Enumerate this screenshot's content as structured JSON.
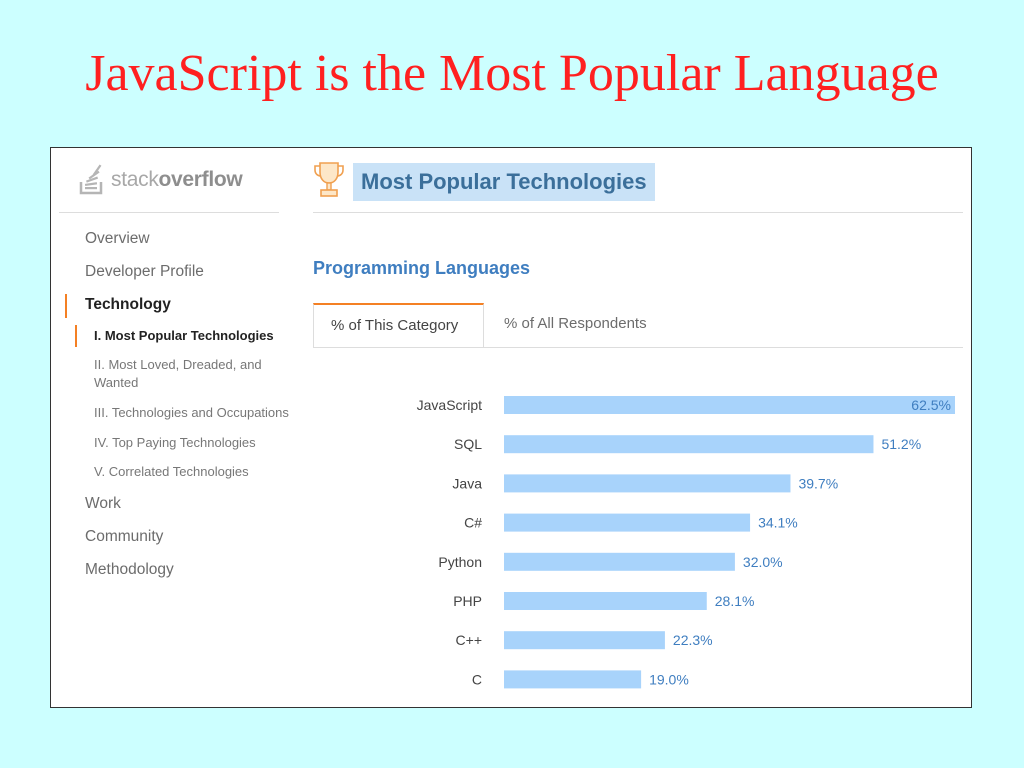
{
  "slide": {
    "title": "JavaScript is the Most Popular Language"
  },
  "sidebar": {
    "logo_light": "stack",
    "logo_bold": "overflow",
    "items": [
      {
        "label": "Overview"
      },
      {
        "label": "Developer Profile"
      },
      {
        "label": "Technology",
        "active": true
      },
      {
        "label": "Work"
      },
      {
        "label": "Community"
      },
      {
        "label": "Methodology"
      }
    ],
    "subitems": [
      {
        "label": "I. Most Popular Technologies",
        "active": true
      },
      {
        "label": "II. Most Loved, Dreaded, and Wanted"
      },
      {
        "label": "III. Technologies and Occupations"
      },
      {
        "label": "IV. Top Paying Technologies"
      },
      {
        "label": "V. Correlated Technologies"
      }
    ]
  },
  "main": {
    "title": "Most Popular Technologies",
    "section": "Programming Languages",
    "tabs": [
      {
        "label": "% of This Category",
        "active": true
      },
      {
        "label": "% of All Respondents"
      }
    ]
  },
  "colors": {
    "bar": "#a8d3fb",
    "value_text": "#3f7ec0",
    "accent": "#f48024",
    "title_red": "#ff2020",
    "slide_bg": "#ccffff"
  },
  "chart_data": {
    "type": "bar",
    "orientation": "horizontal",
    "categories": [
      "JavaScript",
      "SQL",
      "Java",
      "C#",
      "Python",
      "PHP",
      "C++",
      "C"
    ],
    "values": [
      62.5,
      51.2,
      39.7,
      34.1,
      32.0,
      28.1,
      22.3,
      19.0
    ],
    "value_labels": [
      "62.5%",
      "51.2%",
      "39.7%",
      "34.1%",
      "32.0%",
      "28.1%",
      "22.3%",
      "19.0%"
    ],
    "xlim": [
      0,
      62.5
    ],
    "grid": false,
    "legend": "none"
  }
}
